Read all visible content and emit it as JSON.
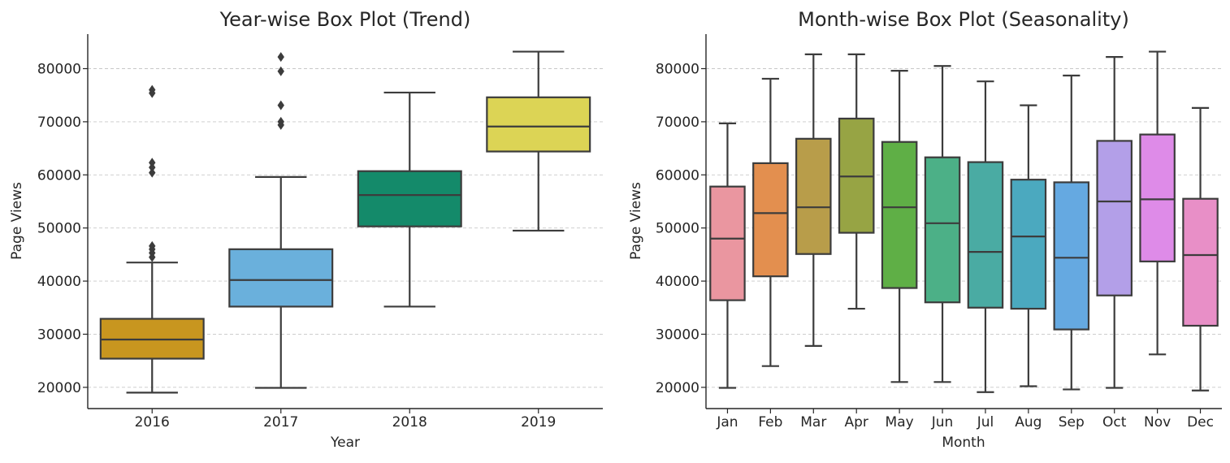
{
  "chart_data": [
    {
      "type": "box",
      "title": "Year-wise Box Plot (Trend)",
      "xlabel": "Year",
      "ylabel": "Page Views",
      "ylim": [
        16000,
        86500
      ],
      "yticks": [
        "20000",
        "30000",
        "40000",
        "50000",
        "60000",
        "70000",
        "80000"
      ],
      "grid": "y",
      "categories": [
        "2016",
        "2017",
        "2018",
        "2019"
      ],
      "colors": [
        "#c8961f",
        "#6ab0dc",
        "#148a6a",
        "#dcd455"
      ],
      "boxes": [
        {
          "category": "2016",
          "whisker_low": 19000,
          "q1": 25400,
          "median": 29000,
          "q3": 32900,
          "whisker_high": 43500,
          "outliers": [
            44500,
            45300,
            46000,
            46600,
            60400,
            61400,
            62300,
            75400,
            76000
          ]
        },
        {
          "category": "2017",
          "whisker_low": 19900,
          "q1": 35200,
          "median": 40200,
          "q3": 46000,
          "whisker_high": 59600,
          "outliers": [
            69400,
            70000,
            73100,
            79500,
            82200
          ]
        },
        {
          "category": "2018",
          "whisker_low": 35200,
          "q1": 50300,
          "median": 56200,
          "q3": 60700,
          "whisker_high": 75500,
          "outliers": []
        },
        {
          "category": "2019",
          "whisker_low": 49500,
          "q1": 64400,
          "median": 69100,
          "q3": 74600,
          "whisker_high": 83200,
          "outliers": []
        }
      ]
    },
    {
      "type": "box",
      "title": "Month-wise Box Plot (Seasonality)",
      "xlabel": "Month",
      "ylabel": "Page Views",
      "ylim": [
        16000,
        86500
      ],
      "yticks": [
        "20000",
        "30000",
        "40000",
        "50000",
        "60000",
        "70000",
        "80000"
      ],
      "grid": "y",
      "categories": [
        "Jan",
        "Feb",
        "Mar",
        "Apr",
        "May",
        "Jun",
        "Jul",
        "Aug",
        "Sep",
        "Oct",
        "Nov",
        "Dec"
      ],
      "colors": [
        "#ea96a0",
        "#e38f4f",
        "#b89d4a",
        "#97a444",
        "#5faf46",
        "#4cb087",
        "#4aaba3",
        "#4ba9bf",
        "#65a9e1",
        "#b39fe8",
        "#de8be8",
        "#e88fc7"
      ],
      "boxes": [
        {
          "category": "Jan",
          "whisker_low": 19900,
          "q1": 36400,
          "median": 48000,
          "q3": 57800,
          "whisker_high": 69700,
          "outliers": []
        },
        {
          "category": "Feb",
          "whisker_low": 24000,
          "q1": 40900,
          "median": 52800,
          "q3": 62200,
          "whisker_high": 78100,
          "outliers": []
        },
        {
          "category": "Mar",
          "whisker_low": 27800,
          "q1": 45100,
          "median": 53900,
          "q3": 66800,
          "whisker_high": 82700,
          "outliers": []
        },
        {
          "category": "Apr",
          "whisker_low": 34800,
          "q1": 49100,
          "median": 59700,
          "q3": 70600,
          "whisker_high": 82700,
          "outliers": []
        },
        {
          "category": "May",
          "whisker_low": 21000,
          "q1": 38700,
          "median": 53900,
          "q3": 66200,
          "whisker_high": 79600,
          "outliers": []
        },
        {
          "category": "Jun",
          "whisker_low": 21000,
          "q1": 36000,
          "median": 50900,
          "q3": 63300,
          "whisker_high": 80500,
          "outliers": []
        },
        {
          "category": "Jul",
          "whisker_low": 19100,
          "q1": 35000,
          "median": 45500,
          "q3": 62400,
          "whisker_high": 77600,
          "outliers": []
        },
        {
          "category": "Aug",
          "whisker_low": 20200,
          "q1": 34800,
          "median": 48400,
          "q3": 59100,
          "whisker_high": 73100,
          "outliers": []
        },
        {
          "category": "Sep",
          "whisker_low": 19600,
          "q1": 30900,
          "median": 44400,
          "q3": 58600,
          "whisker_high": 78700,
          "outliers": []
        },
        {
          "category": "Oct",
          "whisker_low": 19900,
          "q1": 37300,
          "median": 55000,
          "q3": 66400,
          "whisker_high": 82200,
          "outliers": []
        },
        {
          "category": "Nov",
          "whisker_low": 26200,
          "q1": 43700,
          "median": 55400,
          "q3": 67600,
          "whisker_high": 83200,
          "outliers": []
        },
        {
          "category": "Dec",
          "whisker_low": 19400,
          "q1": 31600,
          "median": 44900,
          "q3": 55500,
          "whisker_high": 72600,
          "outliers": []
        }
      ]
    }
  ]
}
